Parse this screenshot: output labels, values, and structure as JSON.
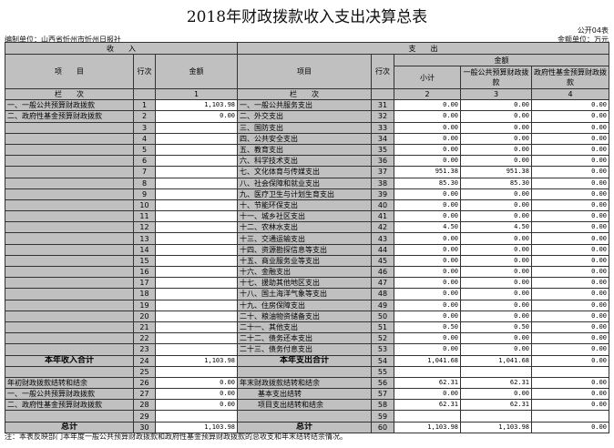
{
  "title": "2018年财政拨款收入支出决算总表",
  "form_no": "公开04表",
  "unit_label": "编制单位：山西省忻州市忻州日报社",
  "money_unit": "金额单位：万元",
  "headers": {
    "income": "收　　入",
    "expense": "支　　出",
    "item": "项　　目",
    "row_no": "行次",
    "amount": "金额",
    "exp_item": "项目",
    "subtotal": "小计",
    "general": "一般公共预算财政拨款",
    "fund": "政府性基金预算财政拨款",
    "col_label": "栏　　次",
    "col1": "1",
    "col2": "2",
    "col3": "3",
    "col4": "4"
  },
  "income_rows": [
    {
      "label": "一、一般公共预算财政拨款",
      "no": "1",
      "amount": "1,103.98"
    },
    {
      "label": "二、政府性基金预算财政拨款",
      "no": "2",
      "amount": "0.00"
    },
    {
      "label": "",
      "no": "3",
      "amount": ""
    },
    {
      "label": "",
      "no": "4",
      "amount": ""
    },
    {
      "label": "",
      "no": "5",
      "amount": ""
    },
    {
      "label": "",
      "no": "6",
      "amount": ""
    },
    {
      "label": "",
      "no": "7",
      "amount": ""
    },
    {
      "label": "",
      "no": "8",
      "amount": ""
    },
    {
      "label": "",
      "no": "9",
      "amount": ""
    },
    {
      "label": "",
      "no": "10",
      "amount": ""
    },
    {
      "label": "",
      "no": "11",
      "amount": ""
    },
    {
      "label": "",
      "no": "12",
      "amount": ""
    },
    {
      "label": "",
      "no": "13",
      "amount": ""
    },
    {
      "label": "",
      "no": "14",
      "amount": ""
    },
    {
      "label": "",
      "no": "15",
      "amount": ""
    },
    {
      "label": "",
      "no": "16",
      "amount": ""
    },
    {
      "label": "",
      "no": "17",
      "amount": ""
    },
    {
      "label": "",
      "no": "18",
      "amount": ""
    },
    {
      "label": "",
      "no": "19",
      "amount": ""
    },
    {
      "label": "",
      "no": "20",
      "amount": ""
    },
    {
      "label": "",
      "no": "21",
      "amount": ""
    },
    {
      "label": "",
      "no": "22",
      "amount": ""
    },
    {
      "label": "",
      "no": "23",
      "amount": ""
    },
    {
      "label": "本年收入合计",
      "no": "24",
      "amount": "1,103.98",
      "bold": true
    },
    {
      "label": "",
      "no": "25",
      "amount": ""
    },
    {
      "label": "年初财政拨款结转和结余",
      "no": "26",
      "amount": "0.00"
    },
    {
      "label": "一、一般公共预算财政拨款",
      "no": "27",
      "amount": "0.00"
    },
    {
      "label": "二、政府性基金预算财政拨款",
      "no": "28",
      "amount": "0.00"
    },
    {
      "label": "",
      "no": "29",
      "amount": ""
    },
    {
      "label": "总计",
      "no": "30",
      "amount": "1,103.98",
      "bold": true
    }
  ],
  "expense_rows": [
    {
      "label": "一、一般公共服务支出",
      "no": "31",
      "v": [
        "0.00",
        "0.00",
        "0.00"
      ]
    },
    {
      "label": "二、外交支出",
      "no": "32",
      "v": [
        "0.00",
        "0.00",
        "0.00"
      ]
    },
    {
      "label": "三、国防支出",
      "no": "33",
      "v": [
        "0.00",
        "0.00",
        "0.00"
      ]
    },
    {
      "label": "四、公共安全支出",
      "no": "34",
      "v": [
        "0.00",
        "0.00",
        "0.00"
      ]
    },
    {
      "label": "五、教育支出",
      "no": "35",
      "v": [
        "0.00",
        "0.00",
        "0.00"
      ]
    },
    {
      "label": "六、科学技术支出",
      "no": "36",
      "v": [
        "0.00",
        "0.00",
        "0.00"
      ]
    },
    {
      "label": "七、文化体育与传媒支出",
      "no": "37",
      "v": [
        "951.38",
        "951.38",
        "0.00"
      ]
    },
    {
      "label": "八、社会保障和就业支出",
      "no": "38",
      "v": [
        "85.30",
        "85.30",
        "0.00"
      ]
    },
    {
      "label": "九、医疗卫生与计划生育支出",
      "no": "39",
      "v": [
        "0.00",
        "0.00",
        "0.00"
      ]
    },
    {
      "label": "十、节能环保支出",
      "no": "40",
      "v": [
        "0.00",
        "0.00",
        "0.00"
      ]
    },
    {
      "label": "十一、城乡社区支出",
      "no": "41",
      "v": [
        "0.00",
        "0.00",
        "0.00"
      ]
    },
    {
      "label": "十二、农林水支出",
      "no": "42",
      "v": [
        "4.50",
        "4.50",
        "0.00"
      ]
    },
    {
      "label": "十三、交通运输支出",
      "no": "43",
      "v": [
        "0.00",
        "0.00",
        "0.00"
      ]
    },
    {
      "label": "十四、资源勘探信息等支出",
      "no": "44",
      "v": [
        "0.00",
        "0.00",
        "0.00"
      ]
    },
    {
      "label": "十五、商业服务业等支出",
      "no": "45",
      "v": [
        "0.00",
        "0.00",
        "0.00"
      ]
    },
    {
      "label": "十六、金融支出",
      "no": "46",
      "v": [
        "0.00",
        "0.00",
        "0.00"
      ]
    },
    {
      "label": "十七、援助其他地区支出",
      "no": "47",
      "v": [
        "0.00",
        "0.00",
        "0.00"
      ]
    },
    {
      "label": "十八、国土海洋气象等支出",
      "no": "48",
      "v": [
        "0.00",
        "0.00",
        "0.00"
      ]
    },
    {
      "label": "十九、住房保障支出",
      "no": "49",
      "v": [
        "0.00",
        "0.00",
        "0.00"
      ]
    },
    {
      "label": "二十、粮油物资储备支出",
      "no": "50",
      "v": [
        "0.00",
        "0.00",
        "0.00"
      ]
    },
    {
      "label": "二十一、其他支出",
      "no": "51",
      "v": [
        "0.50",
        "0.50",
        "0.00"
      ]
    },
    {
      "label": "二十二、债务还本支出",
      "no": "52",
      "v": [
        "0.00",
        "0.00",
        "0.00"
      ]
    },
    {
      "label": "二十三、债务付息支出",
      "no": "53",
      "v": [
        "0.00",
        "0.00",
        "0.00"
      ]
    },
    {
      "label": "本年支出合计",
      "no": "54",
      "v": [
        "1,041.68",
        "1,041.68",
        "0.00"
      ],
      "bold": true
    },
    {
      "label": "",
      "no": "55",
      "v": [
        "",
        "",
        ""
      ]
    },
    {
      "label": "年末财政拨款结转和结余",
      "no": "56",
      "v": [
        "62.31",
        "62.31",
        "0.00"
      ]
    },
    {
      "label": "基本支出结转",
      "no": "57",
      "v": [
        "0.00",
        "0.00",
        "0.00"
      ],
      "indent": true
    },
    {
      "label": "项目支出结转和结余",
      "no": "58",
      "v": [
        "62.31",
        "62.31",
        "0.00"
      ],
      "indent": true
    },
    {
      "label": "",
      "no": "59",
      "v": [
        "",
        "",
        ""
      ]
    },
    {
      "label": "总计",
      "no": "60",
      "v": [
        "1,103.98",
        "1,103.98",
        "0.00"
      ],
      "bold": true
    }
  ],
  "note": "注：本表反映部门本年度一般公共预算财政拨款和政府性基金预算财政拨款的总收支和年末结转结余情况。"
}
